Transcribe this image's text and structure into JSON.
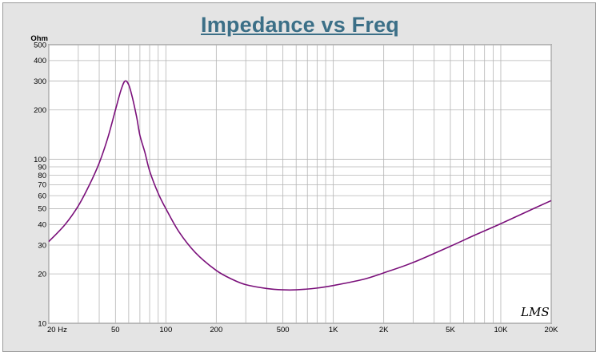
{
  "chart_data": {
    "type": "line",
    "title": "Impedance vs Freq",
    "ylabel": "Ohm",
    "xlabel": "",
    "x_scale": "log",
    "y_scale": "log",
    "xlim": [
      20,
      20000
    ],
    "ylim": [
      10,
      500
    ],
    "grid": true,
    "x_ticks": [
      {
        "value": 20,
        "label": "20  Hz"
      },
      {
        "value": 50,
        "label": "50"
      },
      {
        "value": 100,
        "label": "100"
      },
      {
        "value": 200,
        "label": "200"
      },
      {
        "value": 500,
        "label": "500"
      },
      {
        "value": 1000,
        "label": "1K"
      },
      {
        "value": 2000,
        "label": "2K"
      },
      {
        "value": 5000,
        "label": "5K"
      },
      {
        "value": 10000,
        "label": "10K"
      },
      {
        "value": 20000,
        "label": "20K"
      }
    ],
    "y_ticks": [
      {
        "value": 10,
        "label": "10"
      },
      {
        "value": 20,
        "label": "20"
      },
      {
        "value": 30,
        "label": "30"
      },
      {
        "value": 40,
        "label": "40"
      },
      {
        "value": 50,
        "label": "50"
      },
      {
        "value": 60,
        "label": "60"
      },
      {
        "value": 70,
        "label": "70"
      },
      {
        "value": 80,
        "label": "80"
      },
      {
        "value": 90,
        "label": "90"
      },
      {
        "value": 100,
        "label": "100"
      },
      {
        "value": 200,
        "label": "200"
      },
      {
        "value": 300,
        "label": "300"
      },
      {
        "value": 400,
        "label": "400"
      },
      {
        "value": 500,
        "label": "500"
      }
    ],
    "series": [
      {
        "color": "#7a0f7a",
        "points": [
          [
            20,
            31.5
          ],
          [
            25,
            40
          ],
          [
            30,
            52
          ],
          [
            35,
            70
          ],
          [
            40,
            95
          ],
          [
            45,
            135
          ],
          [
            50,
            200
          ],
          [
            54,
            265
          ],
          [
            57,
            300
          ],
          [
            60,
            285
          ],
          [
            63,
            240
          ],
          [
            67,
            180
          ],
          [
            70,
            140
          ],
          [
            75,
            110
          ],
          [
            80,
            85
          ],
          [
            90,
            62
          ],
          [
            100,
            50
          ],
          [
            120,
            36
          ],
          [
            150,
            27
          ],
          [
            200,
            21
          ],
          [
            250,
            18.5
          ],
          [
            300,
            17.2
          ],
          [
            400,
            16.3
          ],
          [
            500,
            16.0
          ],
          [
            600,
            16.0
          ],
          [
            800,
            16.4
          ],
          [
            1000,
            17.0
          ],
          [
            1500,
            18.5
          ],
          [
            2000,
            20.3
          ],
          [
            3000,
            23.5
          ],
          [
            5000,
            29.5
          ],
          [
            7000,
            34.5
          ],
          [
            10000,
            40.5
          ],
          [
            15000,
            49
          ],
          [
            20000,
            56
          ]
        ]
      }
    ]
  },
  "signature": "LMS"
}
